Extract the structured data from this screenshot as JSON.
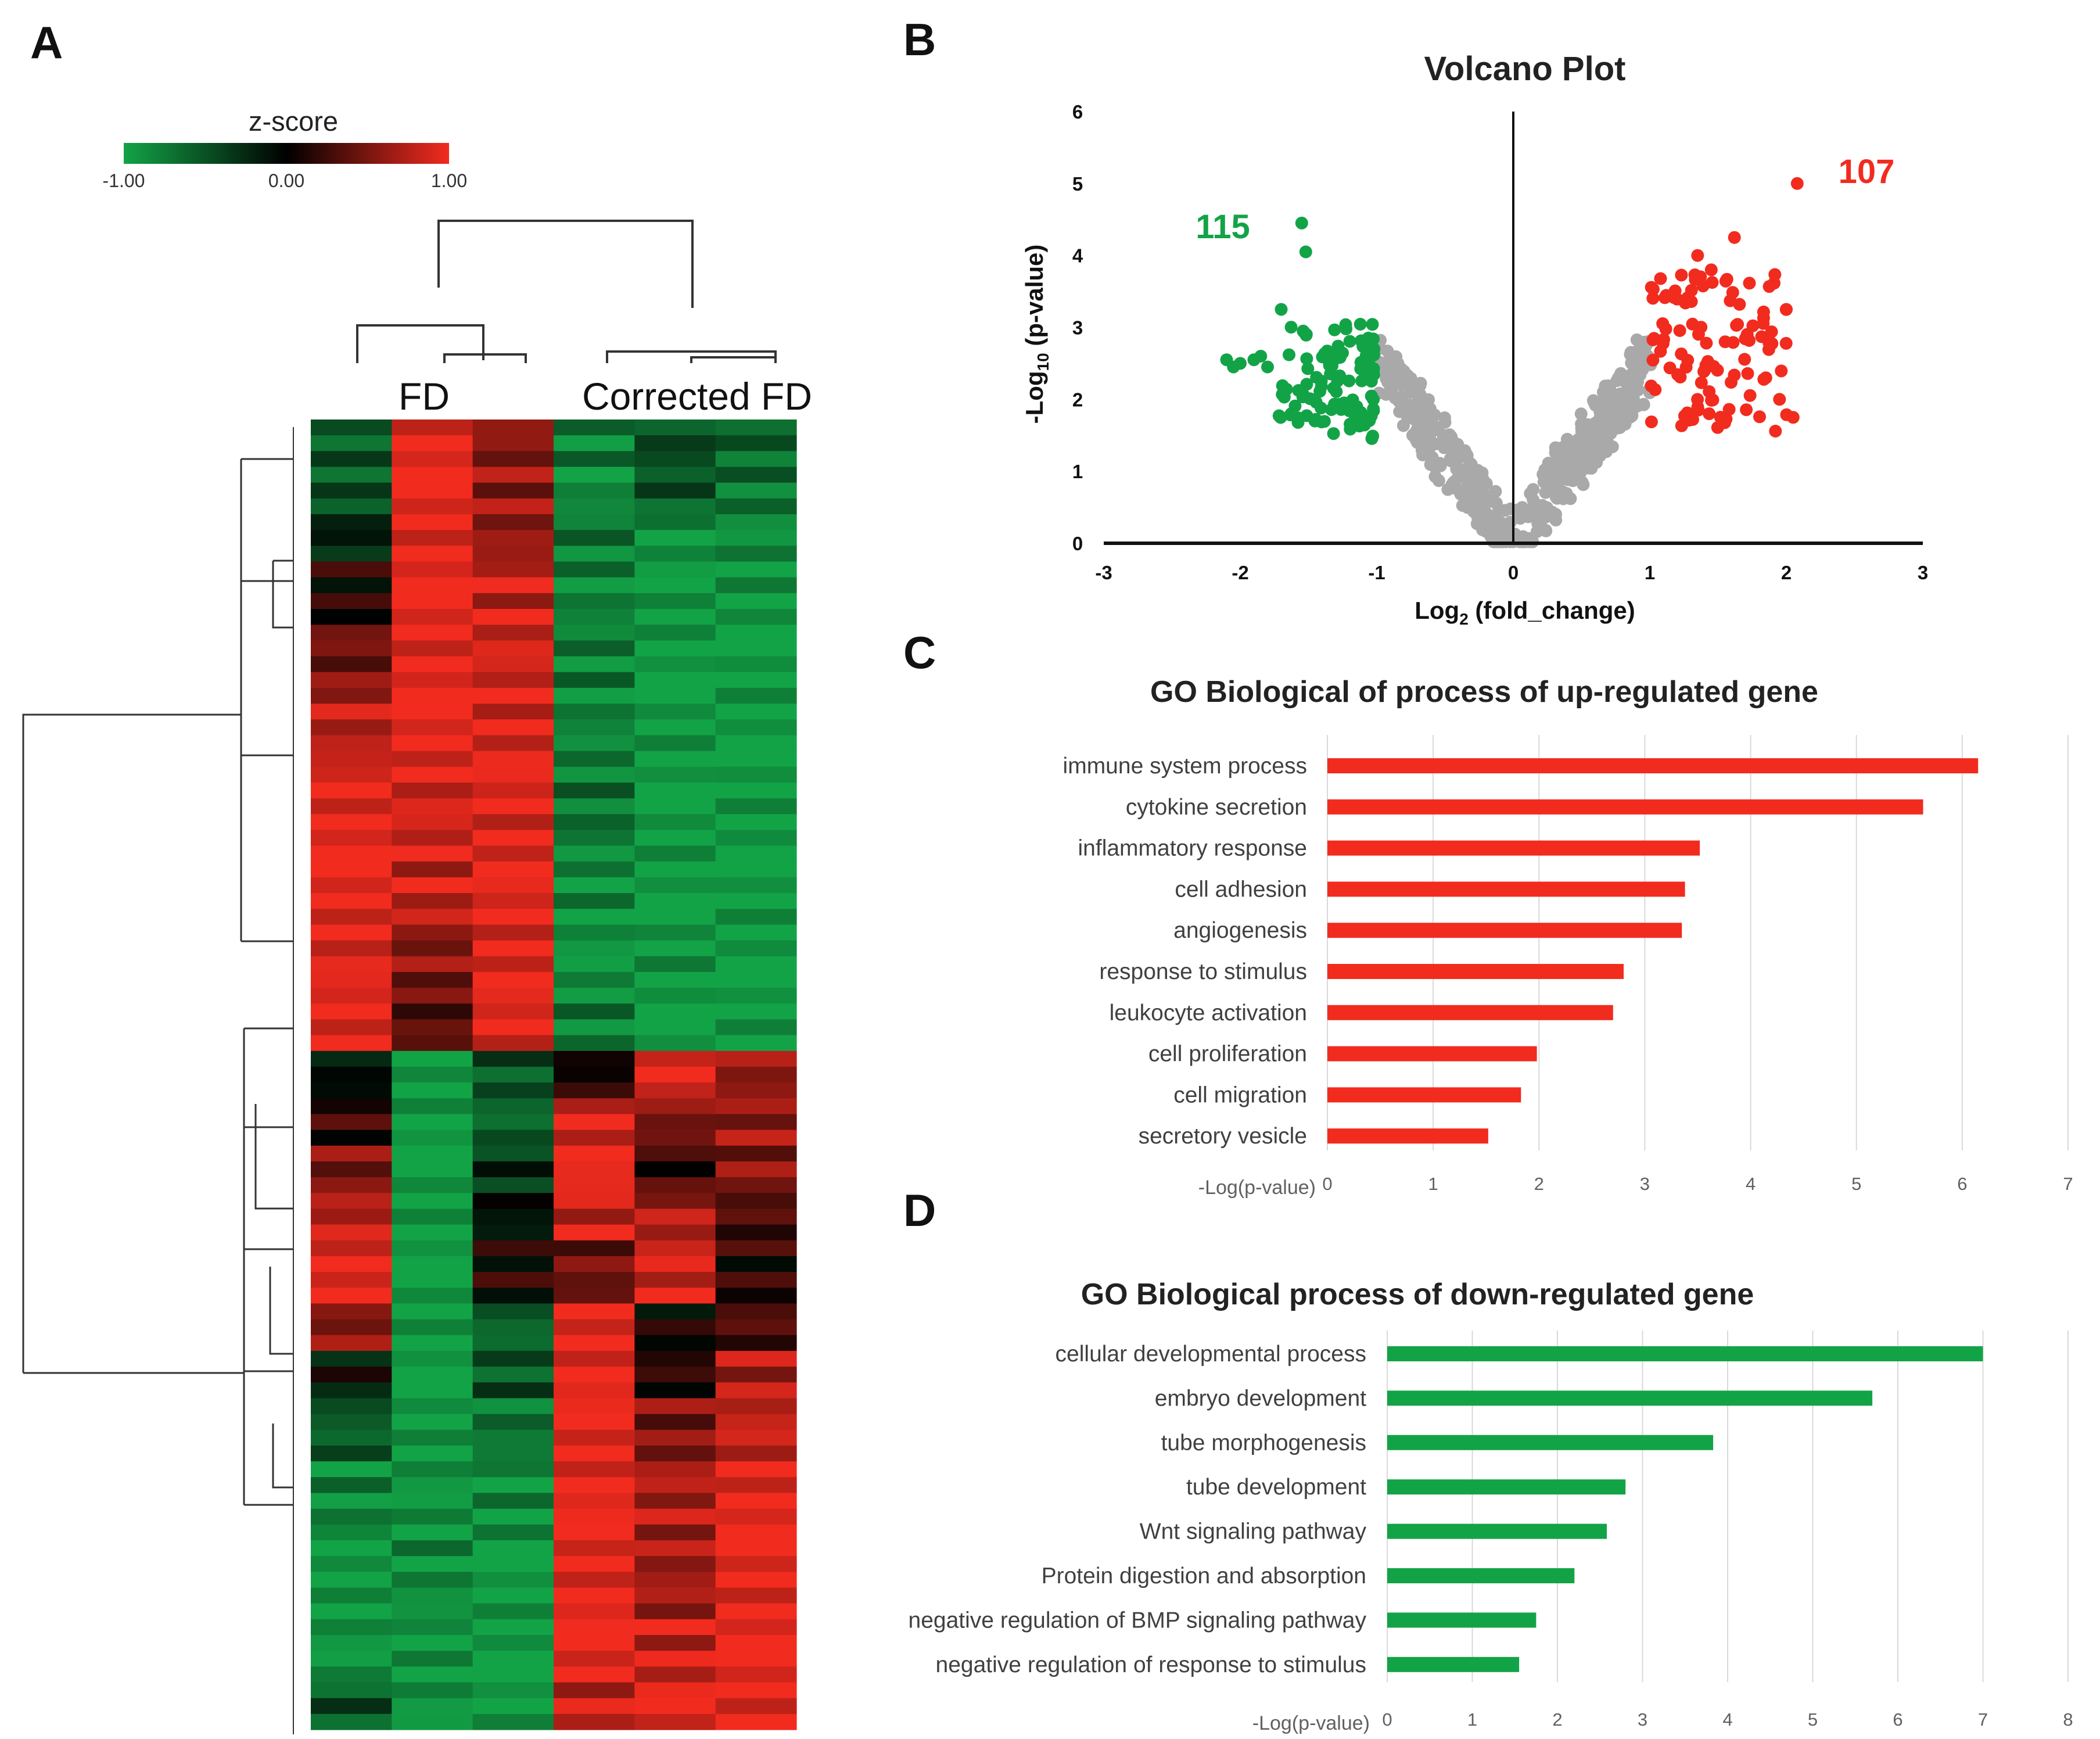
{
  "panels": {
    "a": "A",
    "b": "B",
    "c": "C",
    "d": "D"
  },
  "colors": {
    "up": "#f22b1f",
    "down": "#13a347",
    "neutral": "#a9a9a9",
    "heat_low": "#13a347",
    "heat_mid": "#000000",
    "heat_high": "#f22b1f"
  },
  "chart_data": [
    {
      "type": "heatmap",
      "panel": "A",
      "legend": {
        "title": "z-score",
        "min_label": "-1.00",
        "mid_label": "0.00",
        "max_label": "1.00",
        "range": [
          -1,
          1
        ]
      },
      "column_groups": [
        "FD",
        "Corrected FD"
      ],
      "columns": 6,
      "row_blocks": [
        {
          "z": [
            -0.55,
            1.0,
            0.55,
            -0.75,
            -0.45,
            -0.6
          ],
          "rows": 3
        },
        {
          "z": [
            -0.5,
            1.0,
            0.6,
            -0.85,
            -0.5,
            -0.7
          ],
          "rows": 3
        },
        {
          "z": [
            -0.2,
            1.0,
            0.6,
            -0.7,
            -0.9,
            -0.85
          ],
          "rows": 3
        },
        {
          "z": [
            0.1,
            1.0,
            0.8,
            -0.8,
            -0.95,
            -0.95
          ],
          "rows": 4
        },
        {
          "z": [
            0.45,
            1.0,
            0.85,
            -0.75,
            -1.0,
            -1.0
          ],
          "rows": 4
        },
        {
          "z": [
            0.75,
            1.0,
            0.9,
            -0.8,
            -1.0,
            -1.0
          ],
          "rows": 5
        },
        {
          "z": [
            1.0,
            0.85,
            0.95,
            -0.7,
            -1.0,
            -1.0
          ],
          "rows": 5
        },
        {
          "z": [
            1.0,
            0.8,
            0.95,
            -0.85,
            -1.0,
            -1.0
          ],
          "rows": 5
        },
        {
          "z": [
            0.9,
            0.55,
            0.95,
            -0.9,
            -0.95,
            -1.0
          ],
          "rows": 4
        },
        {
          "z": [
            1.0,
            0.35,
            0.95,
            -0.75,
            -1.0,
            -1.0
          ],
          "rows": 4
        },
        {
          "z": [
            -0.1,
            -1.0,
            -0.5,
            0.1,
            1.0,
            0.6
          ],
          "rows": 3
        },
        {
          "z": [
            0.2,
            -1.0,
            -0.6,
            0.9,
            0.5,
            0.6
          ],
          "rows": 3
        },
        {
          "z": [
            0.5,
            -1.0,
            -0.3,
            1.0,
            0.2,
            0.55
          ],
          "rows": 3
        },
        {
          "z": [
            0.75,
            -1.0,
            -0.1,
            0.8,
            0.7,
            0.3
          ],
          "rows": 3
        },
        {
          "z": [
            1.0,
            -1.0,
            0.1,
            0.45,
            0.85,
            0.15
          ],
          "rows": 4
        },
        {
          "z": [
            0.55,
            -1.0,
            -0.6,
            1.0,
            0.05,
            0.3
          ],
          "rows": 3
        },
        {
          "z": [
            -0.1,
            -1.0,
            -0.5,
            1.0,
            0.15,
            0.7
          ],
          "rows": 3
        },
        {
          "z": [
            -0.55,
            -1.0,
            -0.7,
            1.0,
            0.5,
            0.8
          ],
          "rows": 4
        },
        {
          "z": [
            -0.8,
            -0.9,
            -0.85,
            1.0,
            0.7,
            1.0
          ],
          "rows": 5
        },
        {
          "z": [
            -1.0,
            -0.85,
            -1.0,
            1.0,
            0.65,
            1.0
          ],
          "rows": 5
        },
        {
          "z": [
            -0.9,
            -0.95,
            -1.0,
            1.0,
            0.8,
            1.0
          ],
          "rows": 4
        },
        {
          "z": [
            -0.5,
            -0.9,
            -1.0,
            0.8,
            0.95,
            1.0
          ],
          "rows": 3
        }
      ]
    },
    {
      "type": "scatter",
      "panel": "B",
      "title": "Volcano Plot",
      "xlabel_main": "Log",
      "xlabel_sub": "2",
      "xlabel_rest": " (fold_change)",
      "ylabel_main": "-Log",
      "ylabel_sub": "10",
      "ylabel_rest": " (p-value)",
      "xlim": [
        -3,
        3
      ],
      "ylim": [
        0,
        6
      ],
      "x_ticks": [
        -3,
        -2,
        -1,
        0,
        1,
        2,
        3
      ],
      "y_ticks": [
        0,
        1,
        2,
        3,
        4,
        5,
        6
      ],
      "down_count": "115",
      "up_count": "107",
      "significance_threshold_log2fc": 1
    },
    {
      "type": "bar",
      "panel": "C",
      "orientation": "horizontal",
      "title": "GO Biological of process of up-regulated gene",
      "xlabel": "-Log(p-value)",
      "xlim": [
        0,
        7
      ],
      "x_ticks": [
        0,
        1,
        2,
        3,
        4,
        5,
        6,
        7
      ],
      "categories": [
        "immune system process",
        "cytokine secretion",
        "inflammatory response",
        "cell adhesion",
        "angiogenesis",
        "response to stimulus",
        "leukocyte activation",
        "cell proliferation",
        "cell migration",
        "secretory vesicle"
      ],
      "values": [
        6.15,
        5.63,
        3.52,
        3.38,
        3.35,
        2.8,
        2.7,
        1.98,
        1.83,
        1.52
      ]
    },
    {
      "type": "bar",
      "panel": "D",
      "orientation": "horizontal",
      "title": "GO Biological process of down-regulated gene",
      "xlabel": "-Log(p-value)",
      "xlim": [
        0,
        8
      ],
      "x_ticks": [
        0,
        1,
        2,
        3,
        4,
        5,
        6,
        7,
        8
      ],
      "categories": [
        "cellular developmental process",
        "embryo development",
        "tube morphogenesis",
        "tube development",
        "Wnt signaling pathway",
        "Protein digestion and absorption",
        "negative regulation of BMP signaling pathway",
        "negative regulation of response to stimulus"
      ],
      "values": [
        7.0,
        5.7,
        3.83,
        2.8,
        2.58,
        2.2,
        1.75,
        1.55
      ]
    }
  ]
}
